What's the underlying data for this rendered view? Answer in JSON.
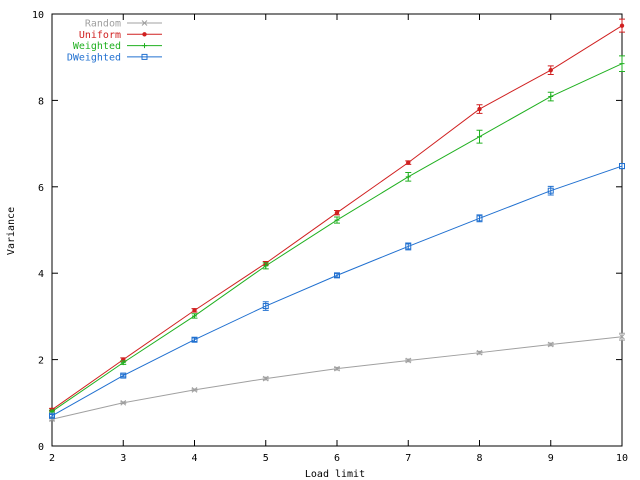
{
  "chart_data": {
    "type": "line",
    "title": "",
    "xlabel": "Load limit",
    "ylabel": "Variance",
    "xlim": [
      2,
      10
    ],
    "ylim": [
      0,
      10
    ],
    "x_ticks": [
      2,
      3,
      4,
      5,
      6,
      7,
      8,
      9,
      10
    ],
    "y_ticks": [
      0,
      2,
      4,
      6,
      8,
      10
    ],
    "grid": false,
    "legend_position": "top-left",
    "x": [
      2,
      3,
      4,
      5,
      6,
      7,
      8,
      9,
      10
    ],
    "series": [
      {
        "name": "Random",
        "color": "#a0a0a0",
        "marker": "x",
        "values": [
          0.62,
          1.0,
          1.3,
          1.56,
          1.79,
          1.98,
          2.16,
          2.35,
          2.53
        ],
        "errors": [
          0.02,
          0.02,
          0.02,
          0.03,
          0.03,
          0.03,
          0.03,
          0.03,
          0.08
        ]
      },
      {
        "name": "Uniform",
        "color": "#d02020",
        "marker": "dot",
        "values": [
          0.84,
          2.0,
          3.14,
          4.23,
          5.4,
          6.56,
          7.8,
          8.7,
          9.73
        ],
        "errors": [
          0.03,
          0.04,
          0.04,
          0.04,
          0.05,
          0.04,
          0.1,
          0.1,
          0.15
        ]
      },
      {
        "name": "Weighted",
        "color": "#20b020",
        "marker": "plus",
        "values": [
          0.8,
          1.93,
          3.01,
          4.17,
          5.23,
          6.23,
          7.16,
          8.09,
          8.85
        ],
        "errors": [
          0.03,
          0.04,
          0.05,
          0.07,
          0.07,
          0.1,
          0.15,
          0.1,
          0.18
        ]
      },
      {
        "name": "DWeighted",
        "color": "#2070d0",
        "marker": "square",
        "values": [
          0.7,
          1.63,
          2.46,
          3.24,
          3.95,
          4.62,
          5.27,
          5.91,
          6.48
        ],
        "errors": [
          0.03,
          0.03,
          0.04,
          0.1,
          0.04,
          0.08,
          0.08,
          0.1,
          0.06
        ]
      }
    ]
  }
}
